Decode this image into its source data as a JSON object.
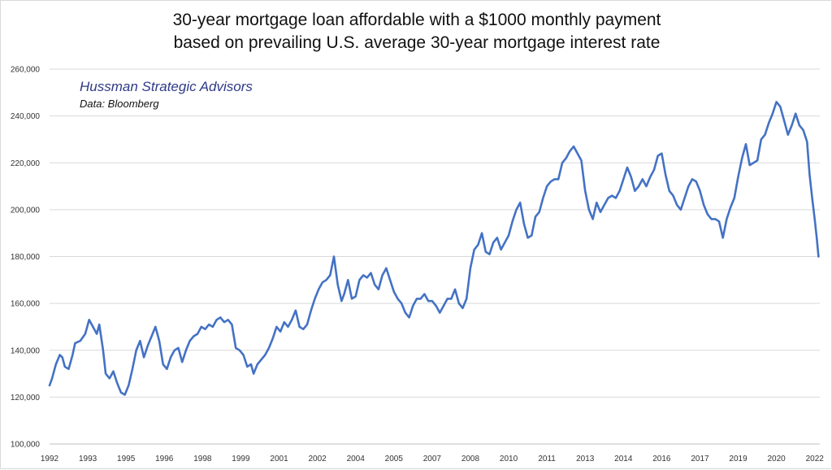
{
  "chart_data": {
    "type": "line",
    "title": "30-year mortgage loan affordable with a $1000 monthly payment",
    "subtitle": "based on prevailing U.S. average 30-year mortgage interest rate",
    "annotations": [
      "Hussman Strategic Advisors",
      "Data: Bloomberg"
    ],
    "xlabel": "",
    "ylabel": "",
    "xlim": [
      1992.0,
      2022.2
    ],
    "ylim": [
      100000,
      260000
    ],
    "grid": true,
    "legend": "none",
    "line_color": "#4472c4",
    "y_ticks": [
      {
        "value": 100000,
        "label": "100,000"
      },
      {
        "value": 120000,
        "label": "120,000"
      },
      {
        "value": 140000,
        "label": "140,000"
      },
      {
        "value": 160000,
        "label": "160,000"
      },
      {
        "value": 180000,
        "label": "180,000"
      },
      {
        "value": 200000,
        "label": "200,000"
      },
      {
        "value": 220000,
        "label": "220,000"
      },
      {
        "value": 240000,
        "label": "240,000"
      },
      {
        "value": 260000,
        "label": "260,000"
      }
    ],
    "x_ticks": [
      {
        "value": 1992.0,
        "label": "1992"
      },
      {
        "value": 1993.5,
        "label": "1993"
      },
      {
        "value": 1995.0,
        "label": "1995"
      },
      {
        "value": 1996.5,
        "label": "1996"
      },
      {
        "value": 1998.0,
        "label": "1998"
      },
      {
        "value": 1999.5,
        "label": "1999"
      },
      {
        "value": 2001.0,
        "label": "2001"
      },
      {
        "value": 2002.5,
        "label": "2002"
      },
      {
        "value": 2004.0,
        "label": "2004"
      },
      {
        "value": 2005.5,
        "label": "2005"
      },
      {
        "value": 2007.0,
        "label": "2007"
      },
      {
        "value": 2008.5,
        "label": "2008"
      },
      {
        "value": 2010.0,
        "label": "2010"
      },
      {
        "value": 2011.5,
        "label": "2011"
      },
      {
        "value": 2013.0,
        "label": "2013"
      },
      {
        "value": 2014.5,
        "label": "2014"
      },
      {
        "value": 2016.0,
        "label": "2016"
      },
      {
        "value": 2017.5,
        "label": "2017"
      },
      {
        "value": 2019.0,
        "label": "2019"
      },
      {
        "value": 2020.5,
        "label": "2020"
      },
      {
        "value": 2022.0,
        "label": "2022"
      }
    ],
    "series": [
      {
        "x": [
          1992.0,
          1992.1,
          1992.25,
          1992.4,
          1992.5,
          1992.6,
          1992.75,
          1992.9,
          1993.0,
          1993.2,
          1993.4,
          1993.55,
          1993.7,
          1993.85,
          1993.95,
          1994.1,
          1994.2,
          1994.35,
          1994.5,
          1994.65,
          1994.8,
          1994.95,
          1995.1,
          1995.25,
          1995.4,
          1995.55,
          1995.7,
          1995.85,
          1996.0,
          1996.15,
          1996.3,
          1996.45,
          1996.6,
          1996.75,
          1996.9,
          1997.05,
          1997.2,
          1997.35,
          1997.5,
          1997.65,
          1997.8,
          1997.95,
          1998.1,
          1998.25,
          1998.4,
          1998.55,
          1998.7,
          1998.85,
          1999.0,
          1999.15,
          1999.3,
          1999.45,
          1999.6,
          1999.75,
          1999.9,
          2000.0,
          2000.15,
          2000.3,
          2000.45,
          2000.6,
          2000.75,
          2000.9,
          2001.05,
          2001.2,
          2001.35,
          2001.5,
          2001.65,
          2001.8,
          2001.95,
          2002.1,
          2002.25,
          2002.4,
          2002.55,
          2002.7,
          2002.85,
          2003.0,
          2003.15,
          2003.3,
          2003.45,
          2003.55,
          2003.7,
          2003.85,
          2004.0,
          2004.15,
          2004.3,
          2004.45,
          2004.6,
          2004.75,
          2004.9,
          2005.05,
          2005.2,
          2005.35,
          2005.5,
          2005.65,
          2005.8,
          2005.95,
          2006.1,
          2006.25,
          2006.4,
          2006.55,
          2006.7,
          2006.85,
          2007.0,
          2007.15,
          2007.3,
          2007.45,
          2007.6,
          2007.75,
          2007.9,
          2008.05,
          2008.2,
          2008.35,
          2008.5,
          2008.65,
          2008.8,
          2008.95,
          2009.1,
          2009.25,
          2009.4,
          2009.55,
          2009.7,
          2009.85,
          2010.0,
          2010.15,
          2010.3,
          2010.45,
          2010.6,
          2010.75,
          2010.9,
          2011.05,
          2011.2,
          2011.35,
          2011.5,
          2011.65,
          2011.8,
          2011.95,
          2012.1,
          2012.25,
          2012.4,
          2012.55,
          2012.7,
          2012.85,
          2013.0,
          2013.15,
          2013.3,
          2013.45,
          2013.6,
          2013.75,
          2013.9,
          2014.05,
          2014.2,
          2014.35,
          2014.5,
          2014.65,
          2014.8,
          2014.95,
          2015.1,
          2015.25,
          2015.4,
          2015.55,
          2015.7,
          2015.85,
          2016.0,
          2016.15,
          2016.3,
          2016.45,
          2016.6,
          2016.75,
          2016.9,
          2017.05,
          2017.2,
          2017.35,
          2017.5,
          2017.65,
          2017.8,
          2017.95,
          2018.1,
          2018.25,
          2018.4,
          2018.55,
          2018.7,
          2018.85,
          2019.0,
          2019.15,
          2019.3,
          2019.45,
          2019.6,
          2019.75,
          2019.9,
          2020.05,
          2020.2,
          2020.35,
          2020.5,
          2020.65,
          2020.8,
          2020.95,
          2021.1,
          2021.25,
          2021.4,
          2021.55,
          2021.7,
          2021.8,
          2021.9,
          2022.0,
          2022.08,
          2022.15
        ],
        "values": [
          125000,
          128000,
          134000,
          138000,
          137000,
          133000,
          132000,
          138000,
          143000,
          144000,
          147000,
          153000,
          150000,
          147000,
          151000,
          140000,
          130000,
          128000,
          131000,
          126000,
          122000,
          121000,
          125000,
          132000,
          140000,
          144000,
          137000,
          142000,
          146000,
          150000,
          144000,
          134000,
          132000,
          137000,
          140000,
          141000,
          135000,
          140000,
          144000,
          146000,
          147000,
          150000,
          149000,
          151000,
          150000,
          153000,
          154000,
          152000,
          153000,
          151000,
          141000,
          140000,
          138000,
          133000,
          134000,
          130000,
          134000,
          136000,
          138000,
          141000,
          145000,
          150000,
          148000,
          152000,
          150000,
          153000,
          157000,
          150000,
          149000,
          151000,
          157000,
          162000,
          166000,
          169000,
          170000,
          172000,
          180000,
          168000,
          161000,
          164000,
          170000,
          162000,
          163000,
          170000,
          172000,
          171000,
          173000,
          168000,
          166000,
          172000,
          175000,
          170000,
          165000,
          162000,
          160000,
          156000,
          154000,
          159000,
          162000,
          162000,
          164000,
          161000,
          161000,
          159000,
          156000,
          159000,
          162000,
          162000,
          166000,
          160000,
          158000,
          162000,
          175000,
          183000,
          185000,
          190000,
          182000,
          181000,
          186000,
          188000,
          183000,
          186000,
          189000,
          195000,
          200000,
          203000,
          194000,
          188000,
          189000,
          197000,
          199000,
          205000,
          210000,
          212000,
          213000,
          213000,
          220000,
          222000,
          225000,
          227000,
          224000,
          221000,
          208000,
          200000,
          196000,
          203000,
          199000,
          202000,
          205000,
          206000,
          205000,
          208000,
          213000,
          218000,
          214000,
          208000,
          210000,
          213000,
          210000,
          214000,
          217000,
          223000,
          224000,
          215000,
          208000,
          206000,
          202000,
          200000,
          205000,
          210000,
          213000,
          212000,
          208000,
          202000,
          198000,
          196000,
          196000,
          195000,
          188000,
          196000,
          201000,
          205000,
          214000,
          222000,
          228000,
          219000,
          220000,
          221000,
          230000,
          232000,
          237000,
          241000,
          246000,
          244000,
          238000,
          232000,
          236000,
          241000,
          236000,
          234000,
          229000,
          215000,
          205000,
          196000,
          188000,
          180000
        ]
      }
    ]
  }
}
